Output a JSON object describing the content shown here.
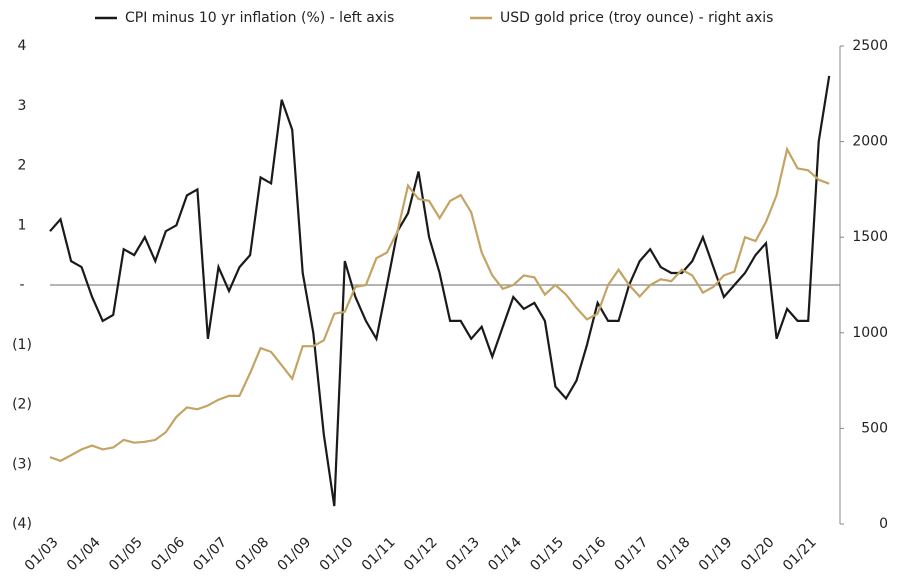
{
  "chart_data": {
    "type": "line",
    "categories": [
      "01/03",
      null,
      null,
      null,
      "01/04",
      null,
      null,
      null,
      "01/05",
      null,
      null,
      null,
      "01/06",
      null,
      null,
      null,
      "01/07",
      null,
      null,
      null,
      "01/08",
      null,
      null,
      null,
      "01/09",
      null,
      null,
      null,
      "01/10",
      null,
      null,
      null,
      "01/11",
      null,
      null,
      null,
      "01/12",
      null,
      null,
      null,
      "01/13",
      null,
      null,
      null,
      "01/14",
      null,
      null,
      null,
      "01/15",
      null,
      null,
      null,
      "01/16",
      null,
      null,
      null,
      "01/17",
      null,
      null,
      null,
      "01/18",
      null,
      null,
      null,
      "01/19",
      null,
      null,
      null,
      "01/20",
      null,
      null,
      null,
      "01/21",
      null,
      null
    ],
    "series": [
      {
        "name": "CPI minus 10 yr inflation (%) - left axis",
        "color": "#1a1a1a",
        "axis": "y",
        "values": [
          0.9,
          1.1,
          0.4,
          0.3,
          -0.2,
          -0.6,
          -0.5,
          0.6,
          0.5,
          0.8,
          0.4,
          0.9,
          1.0,
          1.5,
          1.6,
          -0.9,
          0.3,
          -0.1,
          0.3,
          0.5,
          1.8,
          1.7,
          3.1,
          2.6,
          0.2,
          -0.8,
          -2.5,
          -3.7,
          0.4,
          -0.2,
          -0.6,
          -0.9,
          0.0,
          0.9,
          1.2,
          1.9,
          0.8,
          0.2,
          -0.6,
          -0.6,
          -0.9,
          -0.7,
          -1.2,
          -0.7,
          -0.2,
          -0.4,
          -0.3,
          -0.6,
          -1.7,
          -1.9,
          -1.6,
          -1.0,
          -0.3,
          -0.6,
          -0.6,
          0.0,
          0.4,
          0.6,
          0.3,
          0.2,
          0.2,
          0.4,
          0.8,
          0.3,
          -0.2,
          0.0,
          0.2,
          0.5,
          0.7,
          -0.9,
          -0.4,
          -0.6,
          -0.6,
          2.4,
          3.5
        ]
      },
      {
        "name": "USD gold price (troy ounce) - right axis",
        "color": "#c4a464",
        "axis": "y2",
        "values": [
          350,
          330,
          360,
          390,
          410,
          390,
          400,
          440,
          425,
          430,
          440,
          480,
          560,
          610,
          600,
          620,
          650,
          670,
          670,
          790,
          920,
          900,
          830,
          760,
          930,
          930,
          960,
          1100,
          1110,
          1240,
          1250,
          1390,
          1420,
          1530,
          1770,
          1700,
          1690,
          1600,
          1690,
          1720,
          1630,
          1420,
          1300,
          1230,
          1250,
          1300,
          1290,
          1200,
          1250,
          1200,
          1130,
          1070,
          1100,
          1250,
          1330,
          1250,
          1190,
          1250,
          1280,
          1270,
          1330,
          1300,
          1210,
          1240,
          1300,
          1320,
          1500,
          1480,
          1580,
          1720,
          1960,
          1860,
          1850,
          1800,
          1780
        ]
      }
    ],
    "ylim": [
      -4,
      4
    ],
    "yticks": [
      {
        "value": -4,
        "label": "(4)"
      },
      {
        "value": -3,
        "label": "(3)"
      },
      {
        "value": -2,
        "label": "(2)"
      },
      {
        "value": -1,
        "label": "(1)"
      },
      {
        "value": 0,
        "label": "-"
      },
      1,
      2,
      3,
      4
    ],
    "y2lim": [
      0,
      2500
    ],
    "y2ticks": [
      0,
      500,
      1000,
      1500,
      2000,
      2500
    ],
    "grid": false,
    "legend": "top"
  }
}
